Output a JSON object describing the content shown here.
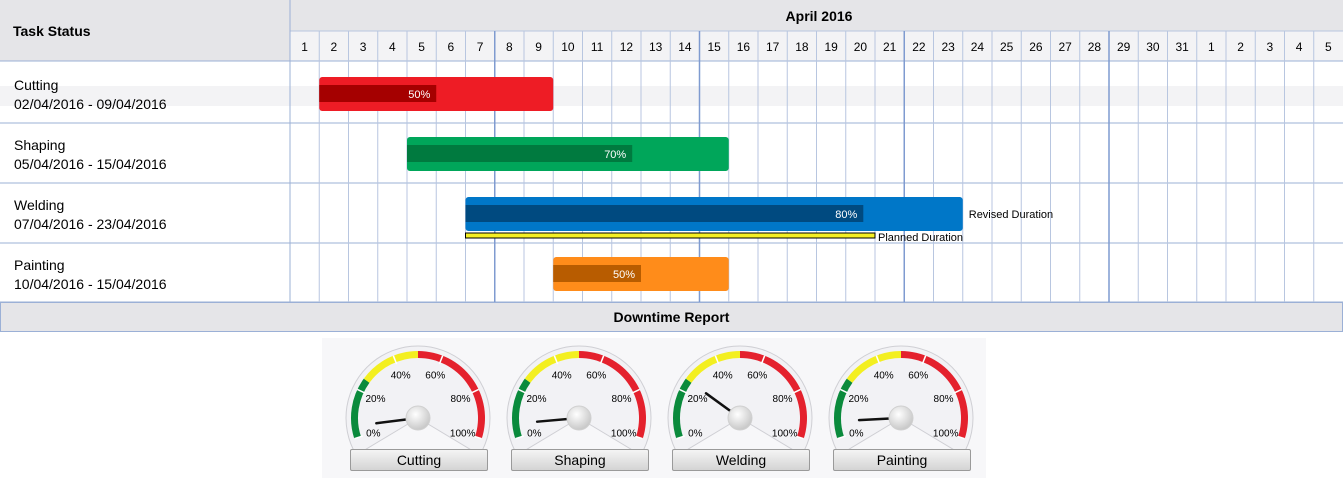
{
  "header": {
    "task_column": "Task Status",
    "month": "April 2016"
  },
  "days": [
    "1",
    "2",
    "3",
    "4",
    "5",
    "6",
    "7",
    "8",
    "9",
    "10",
    "11",
    "12",
    "13",
    "14",
    "15",
    "16",
    "17",
    "18",
    "19",
    "20",
    "21",
    "22",
    "23",
    "24",
    "25",
    "26",
    "27",
    "28",
    "29",
    "30",
    "31",
    "1",
    "2",
    "3",
    "4",
    "5"
  ],
  "chart_data": [
    {
      "type": "gantt",
      "title": "April 2016",
      "tasks": [
        {
          "name": "Cutting",
          "dates": "02/04/2016 - 09/04/2016",
          "start": 2,
          "end": 9,
          "progress": 50,
          "progress_label": "50%",
          "color": "#ee1c25",
          "progress_color": "#a50000"
        },
        {
          "name": "Shaping",
          "dates": "05/04/2016 - 15/04/2016",
          "start": 5,
          "end": 15,
          "progress": 70,
          "progress_label": "70%",
          "color": "#00a65a",
          "progress_color": "#007a3f"
        },
        {
          "name": "Welding",
          "dates": "07/04/2016 - 23/04/2016",
          "start": 7,
          "end": 23,
          "progress": 80,
          "progress_label": "80%",
          "color": "#0077c8",
          "progress_color": "#004a80",
          "planned_start": 7,
          "planned_end": 20,
          "revised_label": "Revised Duration",
          "planned_label": "Planned Duration"
        },
        {
          "name": "Painting",
          "dates": "10/04/2016 - 15/04/2016",
          "start": 10,
          "end": 15,
          "progress": 50,
          "progress_label": "50%",
          "color": "#ff8c1a",
          "progress_color": "#b85c00"
        }
      ]
    },
    {
      "type": "gauge",
      "title": "Downtime Report",
      "ticks": [
        "0%",
        "20%",
        "40%",
        "60%",
        "80%",
        "100%"
      ],
      "bands": [
        {
          "from": 0,
          "to": 25,
          "color": "#0a8a3c"
        },
        {
          "from": 25,
          "to": 50,
          "color": "#f3ef20"
        },
        {
          "from": 50,
          "to": 100,
          "color": "#e4212d"
        }
      ],
      "gauges": [
        {
          "name": "Cutting",
          "value": 5
        },
        {
          "name": "Shaping",
          "value": 6
        },
        {
          "name": "Welding",
          "value": 25
        },
        {
          "name": "Painting",
          "value": 7
        }
      ]
    }
  ]
}
